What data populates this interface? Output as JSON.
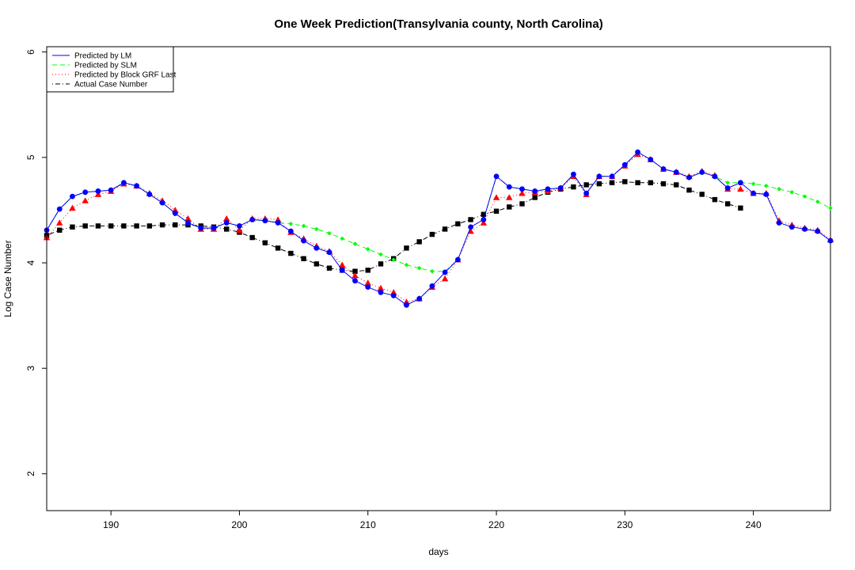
{
  "chart_data": {
    "type": "line",
    "title": "One Week Prediction(Transylvania county, North Carolina)",
    "xlabel": "days",
    "ylabel": "Log Case Number",
    "xlim": [
      185,
      246
    ],
    "ylim": [
      1.65,
      6.05
    ],
    "x_ticks": [
      190,
      200,
      210,
      220,
      230,
      240
    ],
    "y_ticks": [
      2,
      3,
      4,
      5,
      6
    ],
    "grid": false,
    "legend_position": "top-left",
    "series": [
      {
        "name": "Predicted by LM",
        "color": "#0000ff",
        "line_style": "solid",
        "marker": "circle",
        "x": [
          185,
          186,
          187,
          188,
          189,
          190,
          191,
          192,
          193,
          194,
          195,
          196,
          197,
          198,
          199,
          200,
          201,
          202,
          203,
          204,
          205,
          206,
          207,
          208,
          209,
          210,
          211,
          212,
          213,
          214,
          215,
          216,
          217,
          218,
          219,
          220,
          221,
          222,
          223,
          224,
          225,
          226,
          227,
          228,
          229,
          230,
          231,
          232,
          233,
          234,
          235,
          236,
          237,
          238,
          239,
          240,
          241,
          242,
          243,
          244,
          245,
          246
        ],
        "values": [
          4.31,
          4.51,
          4.63,
          4.67,
          4.68,
          4.69,
          4.76,
          4.73,
          4.65,
          4.57,
          4.47,
          4.38,
          4.33,
          4.33,
          4.38,
          4.35,
          4.41,
          4.4,
          4.38,
          4.3,
          4.21,
          4.14,
          4.1,
          3.93,
          3.83,
          3.77,
          3.72,
          3.69,
          3.6,
          3.66,
          3.78,
          3.91,
          4.03,
          4.34,
          4.41,
          4.82,
          4.72,
          4.7,
          4.68,
          4.7,
          4.71,
          4.84,
          4.66,
          4.82,
          4.82,
          4.93,
          5.05,
          4.98,
          4.89,
          4.86,
          4.81,
          4.86,
          4.82,
          4.71,
          4.76,
          4.66,
          4.65,
          4.38,
          4.34,
          4.32,
          4.3,
          4.21
        ]
      },
      {
        "name": "Predicted by SLM",
        "color": "#00ff00",
        "line_style": "dashed",
        "marker": "diamond",
        "x": [
          185,
          186,
          187,
          188,
          189,
          190,
          191,
          192,
          193,
          194,
          195,
          196,
          197,
          198,
          199,
          200,
          201,
          202,
          203,
          204,
          205,
          206,
          207,
          208,
          209,
          210,
          211,
          212,
          213,
          214,
          215,
          216,
          217,
          218,
          219,
          220,
          221,
          222,
          223,
          224,
          225,
          226,
          227,
          228,
          229,
          230,
          231,
          232,
          233,
          234,
          235,
          236,
          237,
          238,
          239,
          240,
          241,
          242,
          243,
          244,
          245,
          246
        ],
        "values": [
          4.31,
          4.51,
          4.63,
          4.67,
          4.68,
          4.69,
          4.76,
          4.73,
          4.65,
          4.57,
          4.47,
          4.38,
          4.33,
          4.33,
          4.38,
          4.35,
          4.41,
          4.4,
          4.38,
          4.37,
          4.35,
          4.32,
          4.28,
          4.23,
          4.18,
          4.13,
          4.08,
          4.03,
          3.98,
          3.95,
          3.92,
          3.92,
          4.03,
          4.34,
          4.41,
          4.82,
          4.72,
          4.7,
          4.68,
          4.7,
          4.71,
          4.84,
          4.66,
          4.82,
          4.82,
          4.93,
          5.05,
          4.98,
          4.89,
          4.86,
          4.81,
          4.86,
          4.82,
          4.76,
          4.76,
          4.75,
          4.73,
          4.7,
          4.67,
          4.63,
          4.58,
          4.52
        ]
      },
      {
        "name": "Predicted by Block GRF Last",
        "color": "#ff0000",
        "line_style": "dotted",
        "marker": "triangle",
        "x": [
          185,
          186,
          187,
          188,
          189,
          190,
          191,
          192,
          193,
          194,
          195,
          196,
          197,
          198,
          199,
          200,
          201,
          202,
          203,
          204,
          205,
          206,
          207,
          208,
          209,
          210,
          211,
          212,
          213,
          214,
          215,
          216,
          217,
          218,
          219,
          220,
          221,
          222,
          223,
          224,
          225,
          226,
          227,
          228,
          229,
          230,
          231,
          232,
          233,
          234,
          235,
          236,
          237,
          238,
          239,
          240,
          241,
          242,
          243,
          244,
          245,
          246
        ],
        "values": [
          4.24,
          4.38,
          4.52,
          4.59,
          4.65,
          4.68,
          4.75,
          4.73,
          4.66,
          4.59,
          4.5,
          4.42,
          4.32,
          4.32,
          4.42,
          4.31,
          4.42,
          4.42,
          4.41,
          4.29,
          4.23,
          4.16,
          4.11,
          3.98,
          3.88,
          3.81,
          3.76,
          3.72,
          3.63,
          3.66,
          3.77,
          3.85,
          4.03,
          4.3,
          4.38,
          4.62,
          4.62,
          4.66,
          4.67,
          4.68,
          4.71,
          4.82,
          4.65,
          4.82,
          4.82,
          4.92,
          5.03,
          4.98,
          4.89,
          4.86,
          4.82,
          4.87,
          4.83,
          4.7,
          4.7,
          4.66,
          4.66,
          4.4,
          4.36,
          4.33,
          4.31,
          4.22
        ]
      },
      {
        "name": "Actual Case Number",
        "color": "#000000",
        "line_style": "dotdash",
        "marker": "square",
        "x": [
          185,
          186,
          187,
          188,
          189,
          190,
          191,
          192,
          193,
          194,
          195,
          196,
          197,
          198,
          199,
          200,
          201,
          202,
          203,
          204,
          205,
          206,
          207,
          208,
          209,
          210,
          211,
          212,
          213,
          214,
          215,
          216,
          217,
          218,
          219,
          220,
          221,
          222,
          223,
          224,
          225,
          226,
          227,
          228,
          229,
          230,
          231,
          232,
          233,
          234,
          235,
          236,
          237,
          238,
          239
        ],
        "values": [
          4.26,
          4.31,
          4.34,
          4.35,
          4.35,
          4.35,
          4.35,
          4.35,
          4.35,
          4.36,
          4.36,
          4.36,
          4.35,
          4.34,
          4.32,
          4.29,
          4.24,
          4.19,
          4.14,
          4.09,
          4.04,
          3.99,
          3.95,
          3.93,
          3.92,
          3.93,
          3.99,
          4.04,
          4.14,
          4.2,
          4.27,
          4.32,
          4.37,
          4.41,
          4.46,
          4.49,
          4.53,
          4.56,
          4.62,
          4.67,
          4.7,
          4.72,
          4.74,
          4.75,
          4.76,
          4.77,
          4.76,
          4.76,
          4.75,
          4.74,
          4.69,
          4.65,
          4.6,
          4.56,
          4.52
        ]
      }
    ]
  }
}
